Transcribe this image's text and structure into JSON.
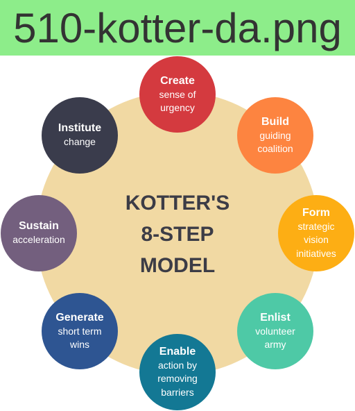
{
  "header": {
    "filename": "510-kotter-da.png"
  },
  "diagram": {
    "title_lines": [
      "KOTTER'S",
      "8-STEP",
      "MODEL"
    ],
    "steps": [
      {
        "title": "Create",
        "desc_lines": [
          "sense of",
          "urgency"
        ],
        "color": "#d43a3f"
      },
      {
        "title": "Build",
        "desc_lines": [
          "guiding",
          "coalition"
        ],
        "color": "#fd8440"
      },
      {
        "title": "Form",
        "desc_lines": [
          "strategic",
          "vision",
          "initiatives"
        ],
        "color": "#fdae14"
      },
      {
        "title": "Enlist",
        "desc_lines": [
          "volunteer",
          "army"
        ],
        "color": "#4ec9a6"
      },
      {
        "title": "Enable",
        "desc_lines": [
          "action by",
          "removing",
          "barriers"
        ],
        "color": "#137894"
      },
      {
        "title": "Generate",
        "desc_lines": [
          "short term",
          "wins"
        ],
        "color": "#2e5592"
      },
      {
        "title": "Sustain",
        "desc_lines": [
          "acceleration"
        ],
        "color": "#735f7e"
      },
      {
        "title": "Institute",
        "desc_lines": [
          "change"
        ],
        "color": "#3a3c4c"
      }
    ]
  },
  "colors": {
    "header_bg": "#8ded8a",
    "hub_bg": "#f1d9a3",
    "title_text": "#3c3c46"
  }
}
